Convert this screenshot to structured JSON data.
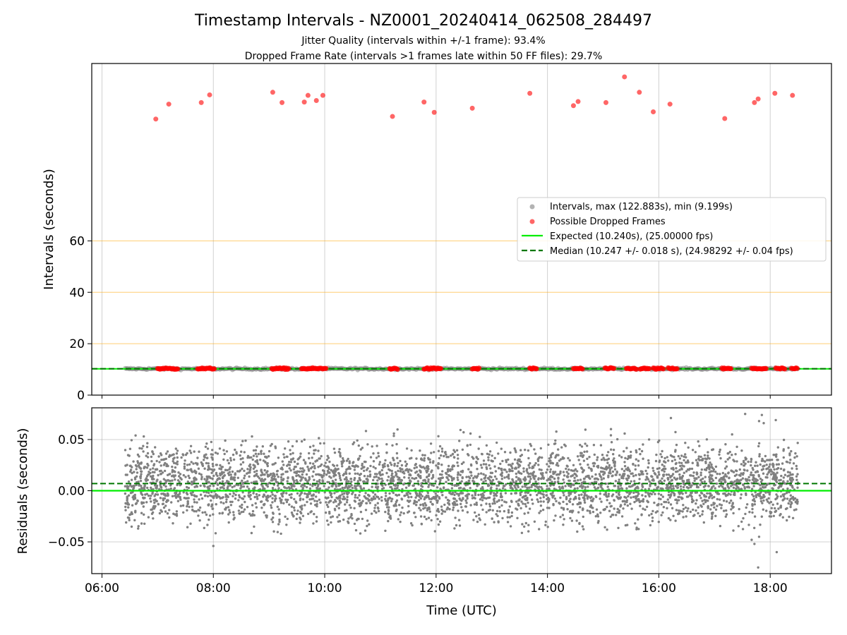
{
  "figure": {
    "title": "Timestamp Intervals - NZ0001_20240414_062508_284497",
    "subtitle_1": "Jitter Quality (intervals within +/-1 frame): 93.4%",
    "subtitle_2": "Dropped Frame Rate (intervals >1 frames late within 50 FF files): 29.7%"
  },
  "colors": {
    "intervals": "#808080",
    "dropped": "#ff0000",
    "expected": "#00ee00",
    "median": "#007700",
    "warning_lines": "#ffa500",
    "grid": "#b0b0b0"
  },
  "chart_data": [
    {
      "type": "scatter",
      "panel": "intervals",
      "ylabel": "Intervals (seconds)",
      "yticks": [
        0,
        20,
        40,
        60
      ],
      "ylim": [
        0,
        129
      ],
      "xlim": [
        "05:49",
        "19:06"
      ],
      "grid": "vertical",
      "warning_lines_y": [
        20,
        40,
        60
      ],
      "legend_position": "center-right",
      "legend": [
        {
          "label": "Intervals, max (122.883s), min (9.199s)",
          "kind": "dot",
          "color": "#808080"
        },
        {
          "label": "Possible Dropped Frames",
          "kind": "dot",
          "color": "#ff0000"
        },
        {
          "label": "Expected (10.240s), (25.00000 fps)",
          "kind": "line",
          "color": "#00ee00"
        },
        {
          "label": "Median (10.247 +/- 0.018 s), (24.98292 +/- 0.04 fps)",
          "kind": "dash",
          "color": "#007700"
        }
      ],
      "series": [
        {
          "name": "Intervals, max (122.883s), min (9.199s)",
          "x_range": [
            "06:25",
            "18:30"
          ],
          "y_approx": 10.24,
          "y_spread": [
            9.5,
            10.8
          ]
        },
        {
          "name": "Possible Dropped Frames",
          "points": [
            {
              "x": "06:58",
              "y": 107.4
            },
            {
              "x": "07:12",
              "y": 113.2
            },
            {
              "x": "07:47",
              "y": 113.8
            },
            {
              "x": "07:56",
              "y": 116.8
            },
            {
              "x": "09:04",
              "y": 117.8
            },
            {
              "x": "09:14",
              "y": 113.8
            },
            {
              "x": "09:38",
              "y": 114.0
            },
            {
              "x": "09:42",
              "y": 116.6
            },
            {
              "x": "09:51",
              "y": 114.6
            },
            {
              "x": "09:58",
              "y": 116.6
            },
            {
              "x": "11:13",
              "y": 108.4
            },
            {
              "x": "11:47",
              "y": 114.0
            },
            {
              "x": "11:58",
              "y": 110.0
            },
            {
              "x": "12:39",
              "y": 111.6
            },
            {
              "x": "13:41",
              "y": 117.4
            },
            {
              "x": "14:28",
              "y": 112.6
            },
            {
              "x": "14:33",
              "y": 114.2
            },
            {
              "x": "15:03",
              "y": 113.8
            },
            {
              "x": "15:23",
              "y": 123.8
            },
            {
              "x": "15:39",
              "y": 117.8
            },
            {
              "x": "15:54",
              "y": 110.2
            },
            {
              "x": "16:12",
              "y": 113.2
            },
            {
              "x": "17:11",
              "y": 107.6
            },
            {
              "x": "17:43",
              "y": 113.8
            },
            {
              "x": "17:47",
              "y": 115.2
            },
            {
              "x": "18:05",
              "y": 117.4
            },
            {
              "x": "18:24",
              "y": 116.6
            }
          ]
        },
        {
          "name": "Possible Dropped Frames (near expected)",
          "y_approx": 10.3,
          "clusters": [
            [
              "07:00",
              "07:22"
            ],
            [
              "07:43",
              "08:02"
            ],
            [
              "09:03",
              "09:22"
            ],
            [
              "09:35",
              "10:02"
            ],
            [
              "11:10",
              "11:19"
            ],
            [
              "11:47",
              "12:06"
            ],
            [
              "12:39",
              "12:47"
            ],
            [
              "13:41",
              "13:49"
            ],
            [
              "14:28",
              "14:38"
            ],
            [
              "15:02",
              "15:12"
            ],
            [
              "15:25",
              "15:36"
            ],
            [
              "15:40",
              "15:50"
            ],
            [
              "15:54",
              "16:05"
            ],
            [
              "16:10",
              "16:20"
            ],
            [
              "17:08",
              "17:18"
            ],
            [
              "17:40",
              "17:56"
            ],
            [
              "18:06",
              "18:16"
            ],
            [
              "18:23",
              "18:30"
            ]
          ]
        },
        {
          "name": "Expected (10.240s), (25.00000 fps)",
          "y": 10.24
        },
        {
          "name": "Median (10.247 +/- 0.018 s), (24.98292 +/- 0.04 fps)",
          "y": 10.247
        }
      ]
    },
    {
      "type": "scatter",
      "panel": "residuals",
      "ylabel": "Residuals (seconds)",
      "xlabel": "Time (UTC)",
      "yticks": [
        "0.05",
        "0.00",
        "−0.05"
      ],
      "yticks_values": [
        0.05,
        0.0,
        -0.05
      ],
      "ylim": [
        -0.081,
        0.081
      ],
      "xticks": [
        "06:00",
        "08:00",
        "10:00",
        "12:00",
        "14:00",
        "16:00",
        "18:00"
      ],
      "xlim": [
        "05:49",
        "19:06"
      ],
      "grid": "both",
      "series": [
        {
          "name": "residuals",
          "x_range": [
            "06:25",
            "18:30"
          ],
          "y_range_typical": [
            -0.04,
            0.055
          ],
          "y_extremes": [
            -0.075,
            0.075
          ],
          "approx_count": 4250
        },
        {
          "name": "expected",
          "y": 0.0
        },
        {
          "name": "median",
          "y": 0.007
        }
      ]
    }
  ]
}
